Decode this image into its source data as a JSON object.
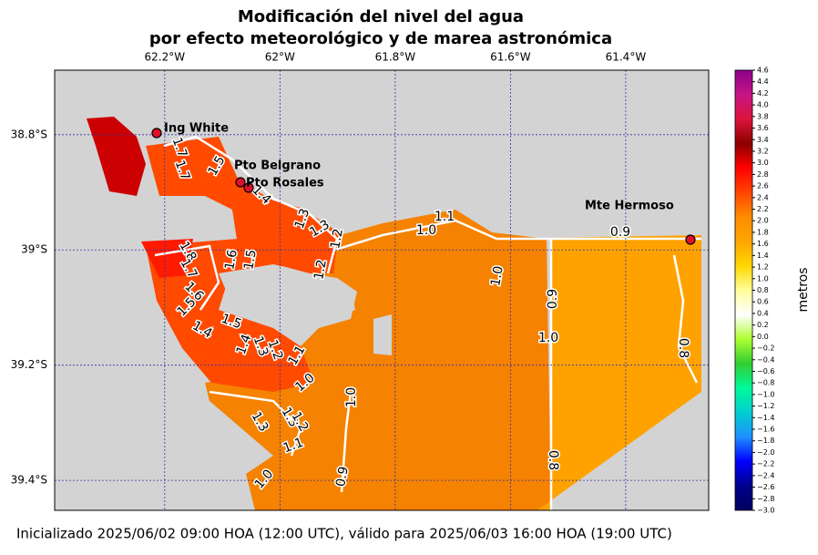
{
  "title": "Modificación del nivel del agua",
  "subtitle": "por efecto meteorológico y de marea astronómica",
  "footer": "Inicializado 2025/06/02 09:00 HOA (12:00 UTC), válido para 2025/06/03 16:00 HOA (19:00 UTC)",
  "lon_ticks": [
    {
      "value": -62.2,
      "label": "62.2°W"
    },
    {
      "value": -62.0,
      "label": "62°W"
    },
    {
      "value": -61.8,
      "label": "61.8°W"
    },
    {
      "value": -61.6,
      "label": "61.6°W"
    },
    {
      "value": -61.4,
      "label": "61.4°W"
    }
  ],
  "lat_ticks": [
    {
      "value": -38.8,
      "label": "38.8°S"
    },
    {
      "value": -39.0,
      "label": "39°S"
    },
    {
      "value": -39.2,
      "label": "39.2°S"
    },
    {
      "value": -39.4,
      "label": "39.4°S"
    }
  ],
  "lon_lim": [
    -62.391,
    -61.256
  ],
  "lat_lim": [
    -38.688,
    -39.452
  ],
  "grid": true,
  "places": [
    "Ing White",
    "Pto Belgrano",
    "Pto Rosales",
    "Mte Hermoso"
  ],
  "contour_labels": [
    "1.7",
    "1.7",
    "1.5",
    "1.4",
    "1.3",
    "1.3",
    "1.2",
    "1.1",
    "1.0",
    "0.9",
    "1.8",
    "1.7",
    "1.6",
    "1.5",
    "1.2",
    "1.0",
    "0.9",
    "1.6",
    "1.5",
    "1.5",
    "1.4",
    "1.4",
    "1.3",
    "1.2",
    "1.1",
    "1.0",
    "0.8",
    "1.0",
    "1.0",
    "1.3",
    "1.3",
    "1.2",
    "1.1",
    "0.9",
    "1.0",
    "0.8"
  ],
  "colorbar": {
    "label": "metros",
    "lim": [
      -3.0,
      4.6
    ],
    "colors": [
      "#8b008b",
      "#c71585",
      "#dc143c",
      "#8b0000",
      "#ff0000",
      "#ff4500",
      "#ff8c00",
      "#ffa500",
      "#ffd700",
      "#ffff99",
      "#ffffff",
      "#adff2f",
      "#32cd32",
      "#00fa9a",
      "#00ced1",
      "#1e90ff",
      "#0000ff",
      "#00008b",
      "#000060"
    ],
    "ticks": [
      4.6,
      4.4,
      4.2,
      {
        "value": 4,
        "label": "4.0"
      },
      3.8,
      3.6,
      3.4,
      3.2,
      {
        "value": 3,
        "label": "3.0"
      },
      2.8,
      2.6,
      2.4,
      2.2,
      {
        "value": 2,
        "label": "2.0"
      },
      1.8,
      1.6,
      1.4,
      1.2,
      {
        "value": 1,
        "label": "1.0"
      },
      0.8,
      0.6,
      0.4,
      0.2,
      {
        "value": 0,
        "label": "0.0"
      },
      {
        "value": -0.2,
        "label": "−0.2"
      },
      {
        "value": -0.4,
        "label": "−0.4"
      },
      {
        "value": -0.6,
        "label": "−0.6"
      },
      {
        "value": -0.8,
        "label": "−0.8"
      },
      {
        "value": -1,
        "label": "−1.0"
      },
      {
        "value": -1.2,
        "label": "−1.2"
      },
      {
        "value": -1.4,
        "label": "−1.4"
      },
      {
        "value": -1.6,
        "label": "−1.6"
      },
      {
        "value": -1.8,
        "label": "−1.8"
      },
      {
        "value": -2,
        "label": "−2.0"
      },
      {
        "value": -2.2,
        "label": "−2.2"
      },
      {
        "value": -2.4,
        "label": "−2.4"
      },
      {
        "value": -2.6,
        "label": "−2.6"
      },
      {
        "value": -2.8,
        "label": "−2.8"
      },
      {
        "value": -3,
        "label": "−3.0"
      }
    ]
  }
}
